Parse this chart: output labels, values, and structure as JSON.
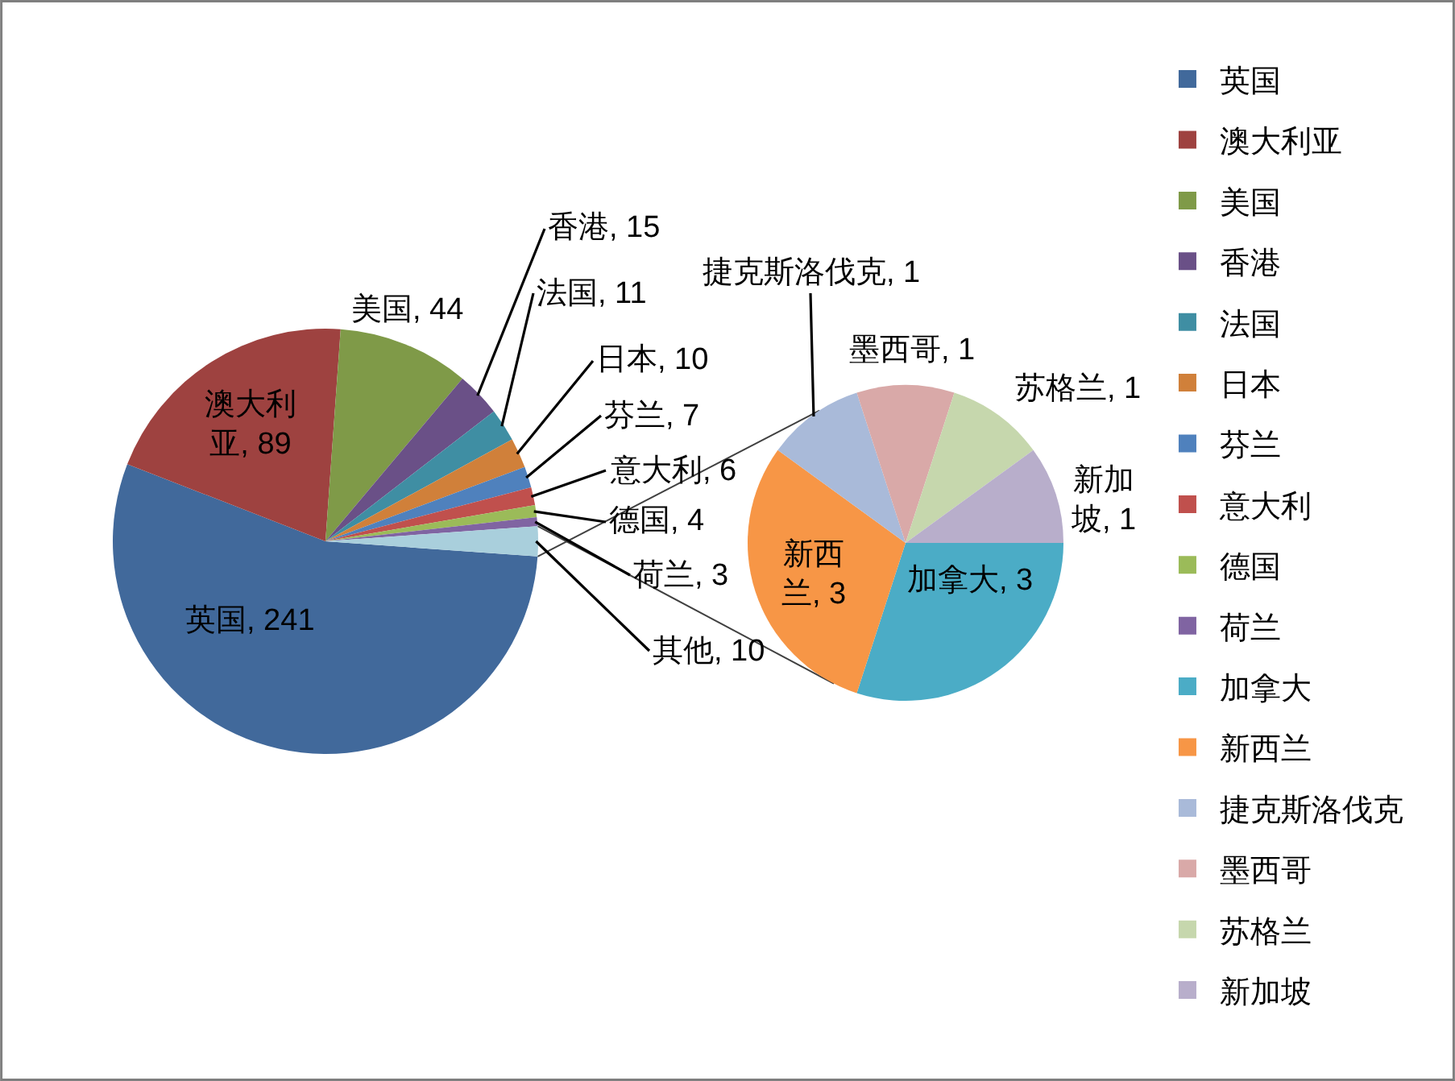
{
  "chart_data": [
    {
      "type": "pie",
      "categories": [
        "英国",
        "澳大利亚",
        "美国",
        "香港",
        "法国",
        "日本",
        "芬兰",
        "意大利",
        "德国",
        "荷兰",
        null
      ],
      "values": [
        241,
        89,
        44,
        15,
        11,
        10,
        7,
        6,
        4,
        3,
        10
      ],
      "colors": [
        "#41699b",
        "#9e4240",
        "#7f9a48",
        "#6a5087",
        "#3f8ea3",
        "#d0803a",
        "#4f81bd",
        "#c0504d",
        "#9bbb59",
        "#8064a2",
        "#a9cfdc"
      ],
      "value_labels": [
        "英国, 241",
        "澳大利亚, 89",
        "美国, 44",
        "香港, 15",
        "法国, 11",
        "日本, 10",
        "芬兰, 7",
        "意大利, 6",
        "德国, 4",
        "荷兰, 3",
        "其他, 10"
      ],
      "legend": "right"
    },
    {
      "type": "pie",
      "categories": [
        "加拿大",
        "新西兰",
        "捷克斯洛伐克",
        "墨西哥",
        "苏格兰",
        "新加坡"
      ],
      "values": [
        3,
        3,
        1,
        1,
        1,
        1
      ],
      "colors": [
        "#4bacc6",
        "#f79646",
        "#a9bad9",
        "#d9a9a8",
        "#c6d7ad",
        "#b8aecb"
      ],
      "value_labels": [
        "加拿大, 3",
        "新西兰, 3",
        "捷克斯洛伐克, 1",
        "墨西哥, 1",
        "苏格兰, 1",
        "新加坡, 1"
      ],
      "legend": "right"
    }
  ]
}
